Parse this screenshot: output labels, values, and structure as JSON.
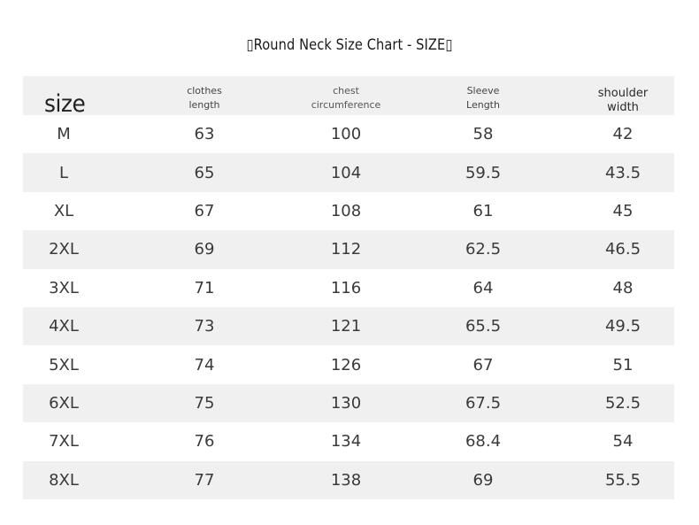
{
  "title": "▯Round Neck Size Chart - SIZE▯",
  "headers": {
    "size": "size",
    "clothes_length": [
      "clothes",
      "length"
    ],
    "chest": [
      "chest",
      "circumference"
    ],
    "sleeve": [
      "Sleeve",
      "Length"
    ],
    "shoulder": [
      "shoulder",
      "width"
    ]
  },
  "rows": [
    {
      "size": "M",
      "length": "63",
      "chest": "100",
      "sleeve": "58",
      "shoulder": "42"
    },
    {
      "size": "L",
      "length": "65",
      "chest": "104",
      "sleeve": "59.5",
      "shoulder": "43.5"
    },
    {
      "size": "XL",
      "length": "67",
      "chest": "108",
      "sleeve": "61",
      "shoulder": "45"
    },
    {
      "size": "2XL",
      "length": "69",
      "chest": "112",
      "sleeve": "62.5",
      "shoulder": "46.5"
    },
    {
      "size": "3XL",
      "length": "71",
      "chest": "116",
      "sleeve": "64",
      "shoulder": "48"
    },
    {
      "size": "4XL",
      "length": "73",
      "chest": "121",
      "sleeve": "65.5",
      "shoulder": "49.5"
    },
    {
      "size": "5XL",
      "length": "74",
      "chest": "126",
      "sleeve": "67",
      "shoulder": "51"
    },
    {
      "size": "6XL",
      "length": "75",
      "chest": "130",
      "sleeve": "67.5",
      "shoulder": "52.5"
    },
    {
      "size": "7XL",
      "length": "76",
      "chest": "134",
      "sleeve": "68.4",
      "shoulder": "54"
    },
    {
      "size": "8XL",
      "length": "77",
      "chest": "138",
      "sleeve": "69",
      "shoulder": "55.5"
    }
  ]
}
